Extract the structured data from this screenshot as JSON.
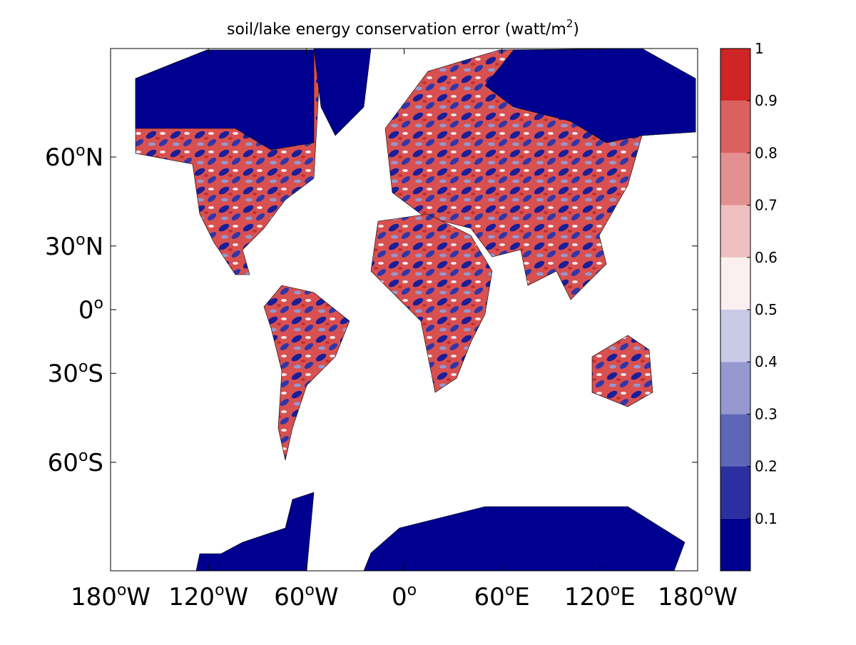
{
  "chart_data": {
    "type": "map",
    "projection": "mercator",
    "title": "soil/lake energy conservation error (watt/m",
    "title_sup": "2",
    "title_end": ")",
    "xlim": [
      -180,
      180
    ],
    "ylim": [
      -78,
      78
    ],
    "xticks": [
      {
        "value": -180,
        "label": "180",
        "sup": "o",
        "hemi": "W"
      },
      {
        "value": -120,
        "label": "120",
        "sup": "o",
        "hemi": "W"
      },
      {
        "value": -60,
        "label": "60",
        "sup": "o",
        "hemi": "W"
      },
      {
        "value": 0,
        "label": "0",
        "sup": "o",
        "hemi": ""
      },
      {
        "value": 60,
        "label": "60",
        "sup": "o",
        "hemi": "E"
      },
      {
        "value": 120,
        "label": "120",
        "sup": "o",
        "hemi": "E"
      },
      {
        "value": 180,
        "label": "180",
        "sup": "o",
        "hemi": "W"
      }
    ],
    "yticks": [
      {
        "value": 60,
        "label": "60",
        "sup": "o",
        "hemi": "N"
      },
      {
        "value": 30,
        "label": "30",
        "sup": "o",
        "hemi": "N"
      },
      {
        "value": 0,
        "label": "0",
        "sup": "o",
        "hemi": ""
      },
      {
        "value": -30,
        "label": "30",
        "sup": "o",
        "hemi": "S"
      },
      {
        "value": -60,
        "label": "60",
        "sup": "o",
        "hemi": "S"
      }
    ],
    "colorbar": {
      "lim": [
        0,
        1
      ],
      "levels": [
        0,
        0.1,
        0.2,
        0.3,
        0.4,
        0.5,
        0.6,
        0.7,
        0.8,
        0.9,
        1
      ],
      "colors": [
        "#000090",
        "#2b2fa0",
        "#5f66b8",
        "#9599d0",
        "#c8cae8",
        "#fbf0f0",
        "#f0c0c0",
        "#e59090",
        "#db6060",
        "#d02525"
      ],
      "ticks": [
        0.1,
        0.2,
        0.3,
        0.4,
        0.5,
        0.6,
        0.7,
        0.8,
        0.9,
        1
      ]
    }
  }
}
